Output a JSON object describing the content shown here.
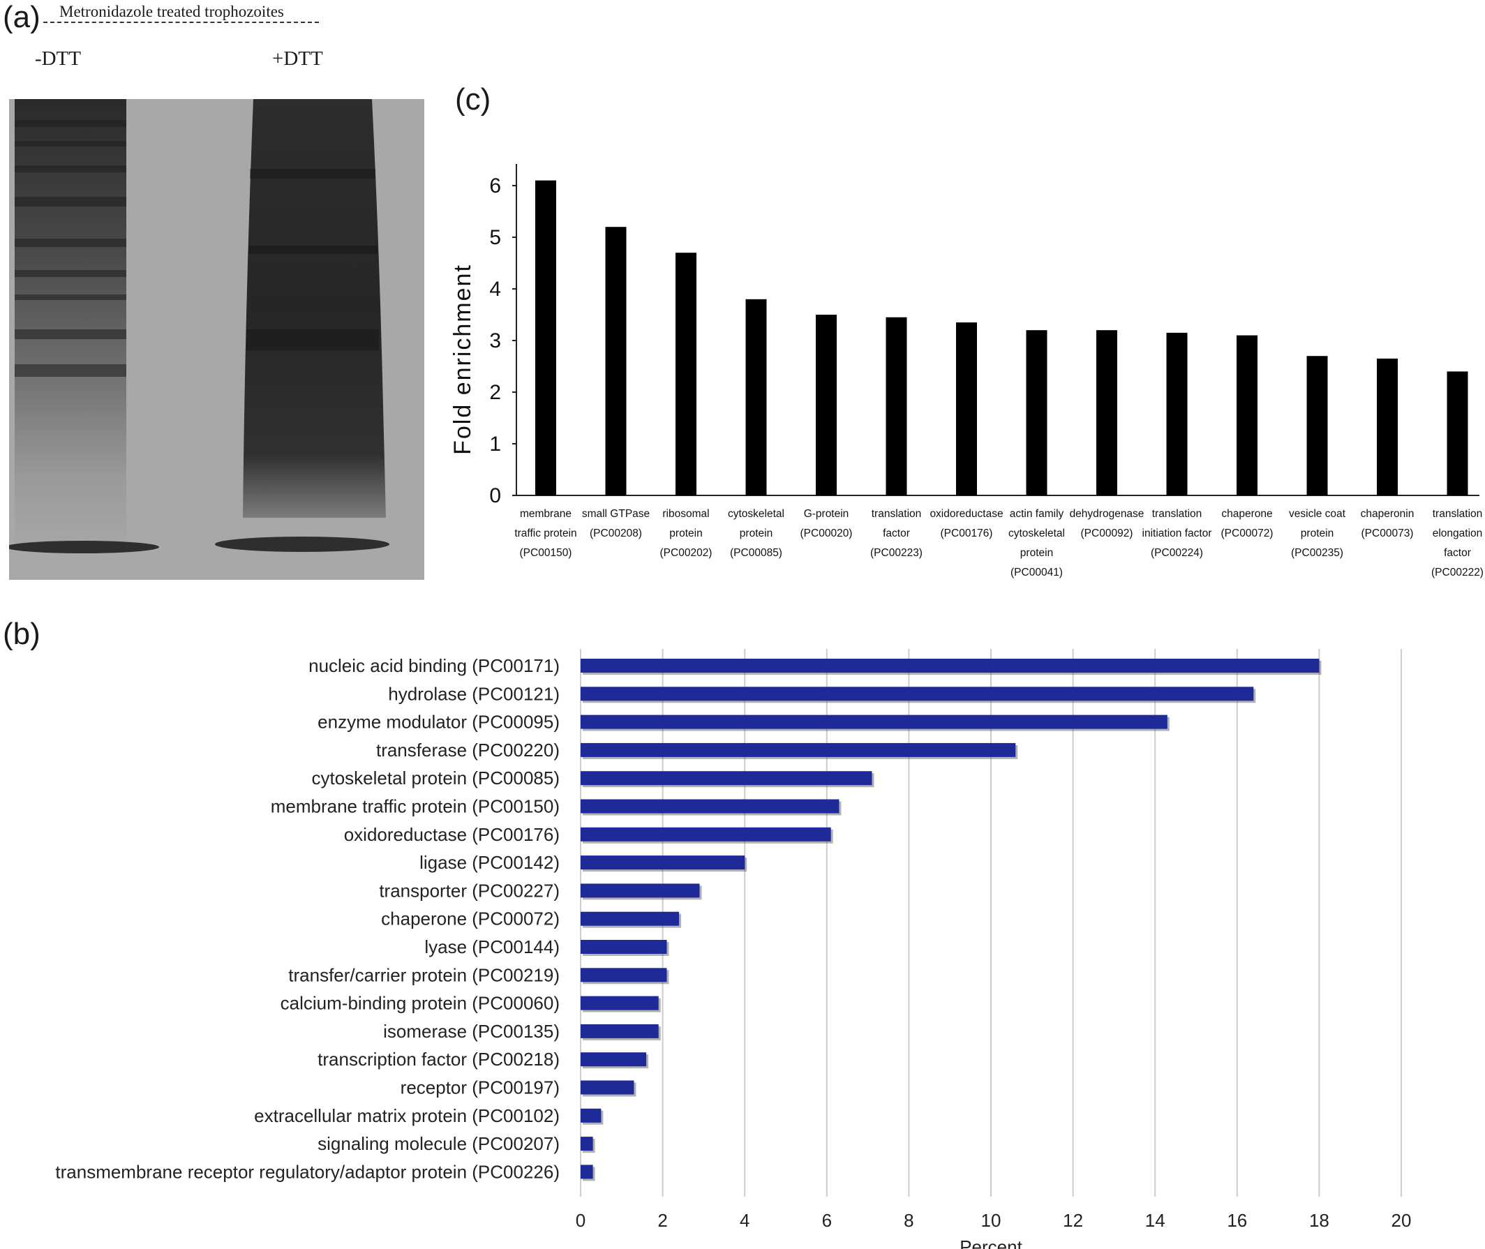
{
  "panels": {
    "a": {
      "letter": "(a)",
      "header": "Metronidazole treated trophozoites",
      "lanes": [
        "-DTT",
        "+DTT"
      ]
    },
    "b": {
      "letter": "(b)"
    },
    "c": {
      "letter": "(c)"
    }
  },
  "chart_data": [
    {
      "id": "c",
      "type": "bar",
      "orientation": "vertical",
      "ylabel": "Fold enrichment",
      "xlabel": "",
      "ylim": [
        0,
        6.3
      ],
      "yticks": [
        0,
        1,
        2,
        3,
        4,
        5,
        6
      ],
      "grid": false,
      "bar_color": "#000000",
      "categories": [
        [
          "membrane",
          "traffic protein",
          "(PC00150)"
        ],
        [
          "small GTPase",
          "(PC00208)"
        ],
        [
          "ribosomal",
          "protein",
          "(PC00202)"
        ],
        [
          "cytoskeletal",
          "protein",
          "(PC00085)"
        ],
        [
          "G-protein",
          "(PC00020)"
        ],
        [
          "translation",
          "factor",
          "(PC00223)"
        ],
        [
          "oxidoreductase",
          "(PC00176)"
        ],
        [
          "actin family",
          "cytoskeletal",
          "protein",
          "(PC00041)"
        ],
        [
          "dehydrogenase",
          "(PC00092)"
        ],
        [
          "translation",
          "initiation factor",
          "(PC00224)"
        ],
        [
          "chaperone",
          "(PC00072)"
        ],
        [
          "vesicle coat",
          "protein",
          "(PC00235)"
        ],
        [
          "chaperonin",
          "(PC00073)"
        ],
        [
          "translation",
          "elongation",
          "factor",
          "(PC00222)"
        ]
      ],
      "values": [
        6.1,
        5.2,
        4.7,
        3.8,
        3.5,
        3.45,
        3.35,
        3.2,
        3.2,
        3.15,
        3.1,
        2.7,
        2.65,
        2.4
      ]
    },
    {
      "id": "b",
      "type": "bar",
      "orientation": "horizontal",
      "xlabel": "Percent",
      "ylabel": "",
      "xlim": [
        0,
        20
      ],
      "xticks": [
        0,
        2,
        4,
        6,
        8,
        10,
        12,
        14,
        16,
        18,
        20
      ],
      "grid": true,
      "bar_color": "#1f2a99",
      "categories": [
        "nucleic acid binding (PC00171)",
        "hydrolase (PC00121)",
        "enzyme modulator (PC00095)",
        "transferase (PC00220)",
        "cytoskeletal protein (PC00085)",
        "membrane traffic protein (PC00150)",
        "oxidoreductase (PC00176)",
        "ligase (PC00142)",
        "transporter (PC00227)",
        "chaperone (PC00072)",
        "lyase (PC00144)",
        "transfer/carrier protein (PC00219)",
        "calcium-binding protein (PC00060)",
        "isomerase (PC00135)",
        "transcription factor (PC00218)",
        "receptor (PC00197)",
        "extracellular matrix protein (PC00102)",
        "signaling molecule (PC00207)",
        "transmembrane receptor regulatory/adaptor protein (PC00226)"
      ],
      "values": [
        18.0,
        16.4,
        14.3,
        10.6,
        7.1,
        6.3,
        6.1,
        4.0,
        2.9,
        2.4,
        2.1,
        2.1,
        1.9,
        1.9,
        1.6,
        1.3,
        0.5,
        0.3,
        0.3
      ]
    }
  ],
  "colors": {
    "gel_background": "#a8a8a8",
    "gel_band": "#2e2e2e"
  }
}
